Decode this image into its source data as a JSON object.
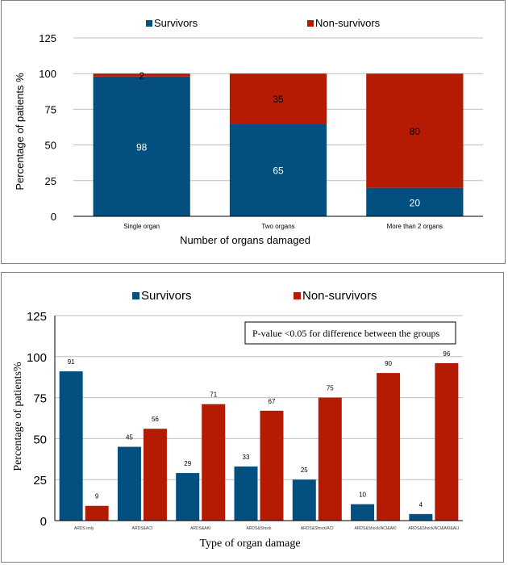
{
  "colors": {
    "survivors": "#034f80",
    "non_survivors": "#b51a02",
    "grid": "#bfbfbf",
    "axis": "#000000"
  },
  "chart_data": [
    {
      "type": "bar",
      "stacked": true,
      "title": "",
      "xlabel": "Number of organs damaged",
      "ylabel": "Percentage of patients %",
      "ylim": [
        0,
        125
      ],
      "yticks": [
        0,
        25,
        50,
        75,
        100,
        125
      ],
      "grid": true,
      "legend_position": "top",
      "categories": [
        "Single organ",
        "Two organs",
        "More than 2 organs"
      ],
      "series": [
        {
          "name": "Survivors",
          "values": [
            98,
            65,
            20
          ]
        },
        {
          "name": "Non-survivors",
          "values": [
            2,
            35,
            80
          ]
        }
      ]
    },
    {
      "type": "bar",
      "stacked": false,
      "title": "",
      "xlabel": "Type of organ damage",
      "ylabel": "Percentage of patients%",
      "ylim": [
        0,
        125
      ],
      "yticks": [
        0,
        25,
        50,
        75,
        100,
        125
      ],
      "grid": true,
      "legend_position": "top",
      "annotation": "P-value <0.05 for difference  between the groups",
      "categories": [
        "ARDS only",
        "ARDS&ACI",
        "ARDS&AKI",
        "ARDS&Shock",
        "ARDS&Shock/ACI",
        "ARDS&Shock/ACI&AKI",
        "ARDS&Shock/ACI&AKI&ALI"
      ],
      "series": [
        {
          "name": "Survivors",
          "values": [
            91,
            45,
            29,
            33,
            25,
            10,
            4
          ]
        },
        {
          "name": "Non-survivors",
          "values": [
            9,
            56,
            71,
            67,
            75,
            90,
            96
          ]
        }
      ]
    }
  ]
}
